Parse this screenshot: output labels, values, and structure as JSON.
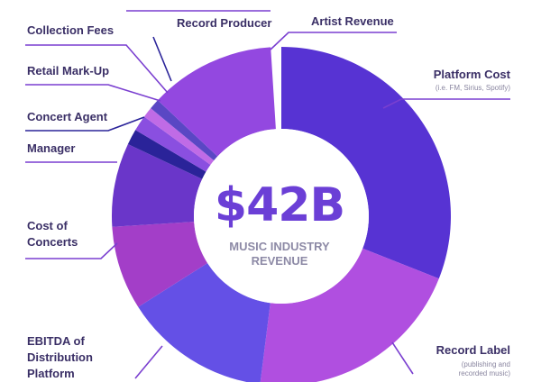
{
  "chart_data": {
    "type": "pie",
    "center_value": "$42B",
    "center_caption_line1": "MUSIC INDUSTRY",
    "center_caption_line2": "REVENUE",
    "slices": [
      {
        "label": "Platform Cost",
        "note": "(i.e. FM, Sirius, Spotify)",
        "share": 0.31,
        "color": "#5733d3"
      },
      {
        "label": "Record Label",
        "note_line1": "(publishing and",
        "note_line2": "recorded music)",
        "share": 0.21,
        "color": "#b04fe0"
      },
      {
        "label": "EBITDA of Distribution Platform",
        "share": 0.14,
        "color": "#6450e6"
      },
      {
        "label": "Cost of Concerts",
        "share": 0.08,
        "color": "#a33ec8"
      },
      {
        "label": "Manager",
        "share": 0.08,
        "color": "#6a36c9"
      },
      {
        "label": "Concert Agent",
        "share": 0.015,
        "color": "#2a2399"
      },
      {
        "label": "Retail Mark-Up",
        "share": 0.015,
        "color": "#8a4fe0"
      },
      {
        "label": "Collection Fees",
        "share": 0.01,
        "color": "#c06be6"
      },
      {
        "label": "Record Producer",
        "share": 0.01,
        "color": "#5a47c4"
      },
      {
        "label": "Artist Revenue",
        "share": 0.12,
        "color": "#9348e0"
      }
    ],
    "ebitda_line1": "EBITDA of",
    "ebitda_line2": "Distribution",
    "ebitda_line3": "Platform",
    "concerts_line1": "Cost of",
    "concerts_line2": "Concerts",
    "leader_color": "#7a3fd0",
    "leader_color_dark": "#2a2399"
  }
}
